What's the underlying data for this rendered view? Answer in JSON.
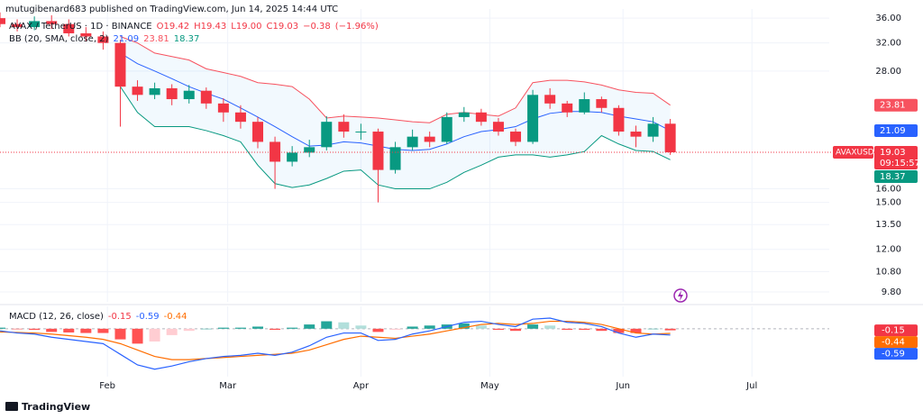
{
  "chart_data": {
    "type": "candlestick",
    "title": "mutugibenard683 published on TradingView.com, Jun 14, 2025 14:44 UTC",
    "symbol": "AVAX / TetherUS · 1D · BINANCE",
    "legend_values": [
      {
        "value": 19.42,
        "label": "O19.42"
      },
      {
        "value": 19.43,
        "label": "H19.43"
      },
      {
        "value": 19.0,
        "label": "L19.00"
      },
      {
        "value": 19.03,
        "label": "C19.03"
      },
      {
        "value": -0.38,
        "label": "−0.38"
      },
      {
        "value": -1.96,
        "label": "(−1.96%)"
      }
    ],
    "annotations": [
      "AVAXUSDT",
      "09:15:57"
    ],
    "footer": "TradingView",
    "log_scale": true,
    "grid": true,
    "up_color": "#089981",
    "down_color": "#f23645",
    "xlim": [
      0,
      193
    ],
    "xticks": [
      {
        "value": 25,
        "label": "Feb"
      },
      {
        "value": 53,
        "label": "Mar"
      },
      {
        "value": 84,
        "label": "Apr"
      },
      {
        "value": 114,
        "label": "May"
      },
      {
        "value": 145,
        "label": "Jun"
      },
      {
        "value": 175,
        "label": "Jul"
      }
    ],
    "ylim": [
      9.35,
      37.6
    ],
    "yticks": [
      {
        "value": 36,
        "label": "36.00"
      },
      {
        "value": 32,
        "label": "32.00"
      },
      {
        "value": 28,
        "label": "28.00"
      },
      {
        "value": 16,
        "label": "16.00"
      },
      {
        "value": 15,
        "label": "15.00"
      },
      {
        "value": 13.5,
        "label": "13.50"
      },
      {
        "value": 12,
        "label": "12.00"
      },
      {
        "value": 10.8,
        "label": "10.80"
      },
      {
        "value": 9.8,
        "label": "9.80"
      }
    ],
    "x": [
      0,
      4,
      8,
      12,
      16,
      20,
      24,
      28,
      32,
      36,
      40,
      44,
      48,
      52,
      56,
      60,
      64,
      68,
      72,
      76,
      80,
      84,
      88,
      92,
      96,
      100,
      104,
      108,
      112,
      116,
      120,
      124,
      128,
      132,
      136,
      140,
      144,
      148,
      152,
      156
    ],
    "open": [
      36,
      35,
      34.5,
      35.5,
      35,
      33.5,
      33,
      32,
      26,
      25,
      25.8,
      24.5,
      25.5,
      24,
      23,
      22,
      20,
      18.2,
      19,
      19.5,
      22,
      21,
      21,
      17.5,
      19.5,
      20.5,
      20,
      22.5,
      23,
      22,
      21,
      20,
      25,
      24,
      23,
      24.5,
      23.5,
      21,
      20.5,
      21.8
    ],
    "high": [
      37,
      35.8,
      36.3,
      36.5,
      35.8,
      34.5,
      33.8,
      32.5,
      26.8,
      26.5,
      26.3,
      26.2,
      25.9,
      24.6,
      23.8,
      22.5,
      20.5,
      19.6,
      20.2,
      22.6,
      22.8,
      21.8,
      21.3,
      20,
      21.2,
      21,
      23,
      23.6,
      23.4,
      22.4,
      21.3,
      25.6,
      25.8,
      24.3,
      25.3,
      24.8,
      23.8,
      21.6,
      22.5,
      22.3
    ],
    "low": [
      34.5,
      33.8,
      34,
      34.2,
      33,
      32.2,
      31,
      21.5,
      24.3,
      24.5,
      23.8,
      24,
      23.4,
      22,
      21.3,
      19.4,
      16,
      17.8,
      18.6,
      19.2,
      20.4,
      20.2,
      15,
      17.2,
      19.2,
      19.5,
      19.8,
      22,
      21.6,
      20.6,
      19.6,
      19.8,
      23.4,
      22.5,
      22.8,
      23,
      20.6,
      19.5,
      20,
      18.8
    ],
    "close": [
      35,
      34.5,
      35.5,
      35,
      33.5,
      33,
      32,
      26,
      25,
      25.8,
      24.5,
      25.5,
      24,
      23,
      22,
      20,
      18.2,
      19,
      19.5,
      22,
      21,
      21,
      17.5,
      19.5,
      20.5,
      20,
      22.5,
      23,
      22,
      21,
      20,
      25,
      24,
      23,
      24.5,
      23.5,
      21,
      20.5,
      21.8,
      19.03
    ],
    "bands": {
      "name": "BB (20, SMA, close, 2)",
      "upper_color": "#f7525f",
      "basis_color": "#2962ff",
      "lower_color": "#089981",
      "upper": [
        null,
        null,
        null,
        null,
        null,
        null,
        null,
        33,
        32,
        30.5,
        30,
        29.5,
        28.3,
        27.8,
        27.3,
        26.5,
        26.3,
        26,
        24.5,
        22.4,
        22.6,
        22.5,
        22.4,
        22.2,
        22,
        21.9,
        22.8,
        23,
        22.8,
        22.6,
        23.5,
        26.5,
        26.8,
        26.8,
        26.6,
        26.2,
        25.6,
        25.3,
        25.2,
        23.81
      ],
      "basis": [
        null,
        null,
        null,
        null,
        null,
        null,
        null,
        30.5,
        29,
        28,
        27,
        26,
        25.2,
        24.5,
        23.5,
        22.5,
        21.5,
        20.5,
        19.6,
        19.7,
        20,
        19.9,
        19.6,
        19.3,
        19.2,
        19.3,
        19.8,
        20.5,
        21,
        21.2,
        21.5,
        22.3,
        22.9,
        23.1,
        23.1,
        23,
        22.6,
        22.3,
        22,
        21.09
      ],
      "lower": [
        null,
        null,
        null,
        null,
        null,
        null,
        null,
        26,
        23,
        21.5,
        21.5,
        21.5,
        21.1,
        20.6,
        20,
        17.9,
        16.4,
        16.1,
        16.3,
        16.8,
        17.4,
        17.5,
        16.3,
        16,
        16,
        16,
        16.5,
        17.3,
        17.9,
        18.6,
        18.8,
        18.8,
        18.6,
        18.8,
        19.1,
        20.6,
        19.8,
        19.2,
        19.1,
        18.37
      ]
    },
    "macd": {
      "name": "MACD (12, 26, close)",
      "ylim": [
        -4.5,
        2.1
      ],
      "histogram_color": "#f23645",
      "macd_color": "#2962ff",
      "signal_color": "#ff6d00",
      "histogram": [
        0.1,
        -0.05,
        -0.1,
        -0.3,
        -0.35,
        -0.4,
        -0.4,
        -1.0,
        -1.4,
        -1.2,
        -0.6,
        -0.2,
        0,
        0.1,
        0.1,
        0.2,
        -0.1,
        0.1,
        0.4,
        0.7,
        0.6,
        0.3,
        -0.3,
        -0.1,
        0.2,
        0.3,
        0.4,
        0.5,
        0.3,
        -0.1,
        -0.2,
        0.4,
        0.3,
        -0.1,
        -0.1,
        -0.2,
        -0.4,
        -0.4,
        0,
        -0.15
      ],
      "macd": [
        -0.2,
        -0.4,
        -0.5,
        -0.8,
        -1.0,
        -1.2,
        -1.4,
        -2.4,
        -3.4,
        -3.8,
        -3.5,
        -3.1,
        -2.8,
        -2.6,
        -2.5,
        -2.3,
        -2.5,
        -2.2,
        -1.6,
        -0.8,
        -0.4,
        -0.4,
        -1.1,
        -1.0,
        -0.5,
        -0.2,
        0.2,
        0.6,
        0.7,
        0.4,
        0.2,
        0.9,
        1.0,
        0.6,
        0.5,
        0.2,
        -0.4,
        -0.8,
        -0.5,
        -0.59
      ],
      "signal": [
        -0.3,
        -0.35,
        -0.4,
        -0.5,
        -0.65,
        -0.8,
        -1.0,
        -1.4,
        -2.0,
        -2.6,
        -2.9,
        -2.9,
        -2.8,
        -2.7,
        -2.6,
        -2.5,
        -2.4,
        -2.3,
        -2.0,
        -1.5,
        -1.0,
        -0.7,
        -0.8,
        -0.9,
        -0.7,
        -0.5,
        -0.2,
        0.1,
        0.4,
        0.5,
        0.4,
        0.5,
        0.7,
        0.7,
        0.6,
        0.4,
        0.0,
        -0.4,
        -0.5,
        -0.44
      ]
    }
  }
}
